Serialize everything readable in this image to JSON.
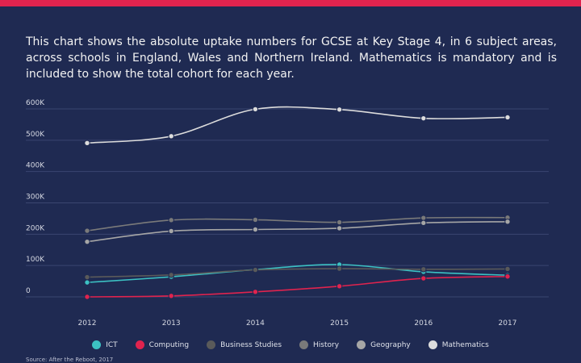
{
  "description": "This chart shows the absolute uptake numbers for GCSE at Key Stage 4, in 6 subject areas, across schools in England, Wales and Northern Ireland. Mathematics is mandatory and is included to show the total cohort for each year.",
  "source": "Source: After the Reboot, 2017",
  "colors": {
    "background": "#1f2a52",
    "accent": "#e0234e",
    "grid": "#3a4570"
  },
  "chart_data": {
    "type": "line",
    "x": [
      2012,
      2013,
      2014,
      2015,
      2016,
      2017
    ],
    "ylim": [
      0,
      600000
    ],
    "yticks": [
      0,
      100000,
      200000,
      300000,
      400000,
      500000,
      600000
    ],
    "ytick_labels": [
      "0",
      "100K",
      "200K",
      "300K",
      "400K",
      "500K",
      "600K"
    ],
    "grid": true,
    "legend_position": "bottom",
    "series": [
      {
        "name": "ICT",
        "color": "#3cc1c3",
        "values": [
          46000,
          64000,
          87000,
          103000,
          80000,
          69000
        ]
      },
      {
        "name": "Computing",
        "color": "#e0234e",
        "values": [
          0,
          3000,
          16000,
          34000,
          59000,
          65000
        ]
      },
      {
        "name": "Business Studies",
        "color": "#5a5a5a",
        "values": [
          63000,
          70000,
          86000,
          90000,
          88000,
          89000
        ]
      },
      {
        "name": "History",
        "color": "#7a7a7a",
        "values": [
          211000,
          245000,
          246000,
          238000,
          252000,
          253000
        ]
      },
      {
        "name": "Geography",
        "color": "#a6a6a6",
        "values": [
          176000,
          210000,
          215000,
          219000,
          236000,
          240000
        ]
      },
      {
        "name": "Mathematics",
        "color": "#dcdcdc",
        "values": [
          491000,
          513000,
          599000,
          598000,
          570000,
          573000
        ]
      }
    ]
  }
}
